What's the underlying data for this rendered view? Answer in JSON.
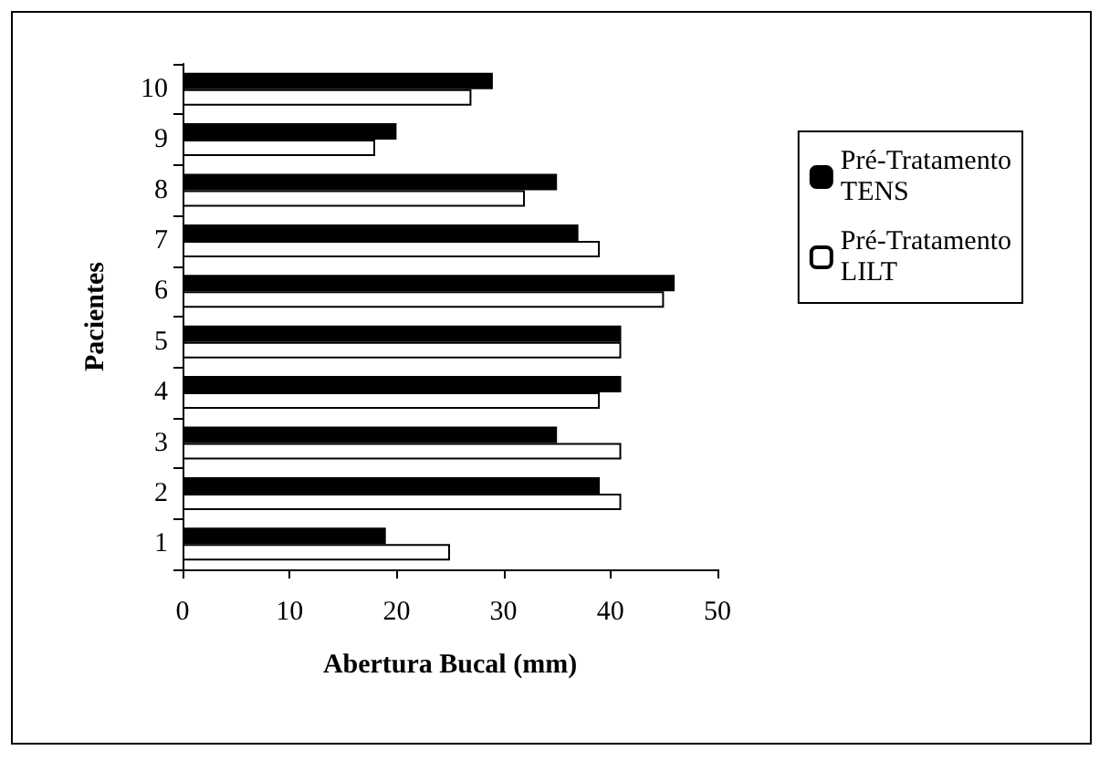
{
  "chart_data": {
    "type": "bar",
    "orientation": "horizontal",
    "xlabel": "Abertura Bucal (mm)",
    "ylabel": "Pacientes",
    "categories": [
      "10",
      "9",
      "8",
      "7",
      "6",
      "5",
      "4",
      "3",
      "2",
      "1"
    ],
    "series": [
      {
        "name": "Pré-Tratamento\nTENS",
        "color": "#000000",
        "values": [
          29,
          20,
          35,
          37,
          46,
          41,
          41,
          35,
          39,
          19
        ]
      },
      {
        "name": "Pré-Tratamento\nLILT",
        "color": "#ffffff",
        "values": [
          27,
          18,
          32,
          39,
          45,
          41,
          39,
          41,
          41,
          25
        ]
      }
    ],
    "xlim": [
      0,
      50
    ],
    "xticks": [
      0,
      10,
      20,
      30,
      40,
      50
    ],
    "grid": false,
    "legend": "right"
  }
}
